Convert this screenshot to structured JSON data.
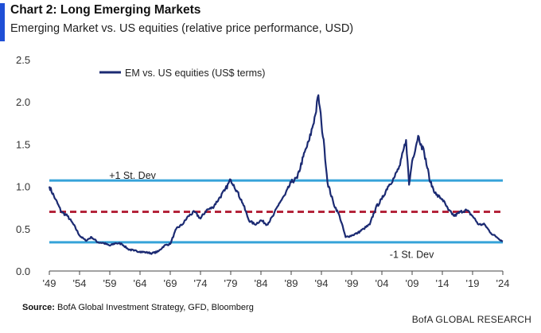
{
  "header": {
    "title": "Chart 2: Long Emerging Markets",
    "subtitle": "Emerging Market vs. US equities (relative price performance, USD)"
  },
  "footer": {
    "source_label": "Source:",
    "source_text": "BofA Global Investment Strategy, GFD, Bloomberg",
    "brand": "BofA GLOBAL RESEARCH"
  },
  "colors": {
    "series": "#1b2a72",
    "band": "#36a3d9",
    "mean": "#b4243a",
    "accent": "#1f4fd6"
  },
  "chart_data": {
    "type": "line",
    "title": "Chart 2: Long Emerging Markets",
    "subtitle": "Emerging Market vs. US equities (relative price performance, USD)",
    "xlabel": "",
    "ylabel": "",
    "xlim": [
      1949,
      2024
    ],
    "ylim": [
      0,
      2.5
    ],
    "x_ticks": [
      1949,
      1954,
      1959,
      1964,
      1969,
      1974,
      1979,
      1984,
      1989,
      1994,
      1999,
      2004,
      2009,
      2014,
      2019,
      2024
    ],
    "x_tick_labels": [
      "'49",
      "'54",
      "'59",
      "'64",
      "'69",
      "'74",
      "'79",
      "'84",
      "'89",
      "'94",
      "'99",
      "'04",
      "'09",
      "'14",
      "'19",
      "'24"
    ],
    "y_ticks": [
      0,
      0.5,
      1.0,
      1.5,
      2.0,
      2.5
    ],
    "y_tick_labels": [
      "0.0",
      "0.5",
      "1.0",
      "1.5",
      "2.0",
      "2.5"
    ],
    "legend": {
      "position": "top-left",
      "entries": [
        "EM vs. US equities (US$ terms)"
      ]
    },
    "reference_lines": [
      {
        "name": "+1 St. Dev",
        "value": 1.07,
        "style": "solid"
      },
      {
        "name": "mean",
        "value": 0.7,
        "style": "dashed"
      },
      {
        "name": "-1 St. Dev",
        "value": 0.34,
        "style": "solid"
      }
    ],
    "annotations": [
      {
        "text": "+1 St. Dev",
        "x": 1951,
        "y": 1.13
      },
      {
        "text": "-1 St. Dev",
        "x": 2002,
        "y": 0.23
      }
    ],
    "series": [
      {
        "name": "EM vs. US equities (US$ terms)",
        "x": [
          1949,
          1950,
          1951,
          1952,
          1953,
          1954,
          1955,
          1956,
          1957,
          1958,
          1959,
          1960,
          1961,
          1962,
          1963,
          1964,
          1965,
          1966,
          1967,
          1968,
          1969,
          1970,
          1971,
          1972,
          1973,
          1974,
          1975,
          1976,
          1977,
          1978,
          1979,
          1979.5,
          1980,
          1981,
          1982,
          1983,
          1984,
          1985,
          1986,
          1987,
          1988,
          1989,
          1990,
          1991,
          1992,
          1993,
          1993.5,
          1994,
          1994.5,
          1995,
          1996,
          1997,
          1998,
          1999,
          2000,
          2001,
          2002,
          2003,
          2004,
          2005,
          2006,
          2007,
          2008,
          2008.5,
          2009,
          2010,
          2010.5,
          2011,
          2012,
          2013,
          2014,
          2015,
          2016,
          2017,
          2018,
          2019,
          2020,
          2021,
          2022,
          2023,
          2024
        ],
        "values": [
          1.0,
          0.85,
          0.7,
          0.65,
          0.55,
          0.42,
          0.36,
          0.4,
          0.34,
          0.33,
          0.3,
          0.33,
          0.32,
          0.26,
          0.24,
          0.23,
          0.22,
          0.21,
          0.23,
          0.3,
          0.32,
          0.5,
          0.55,
          0.65,
          0.7,
          0.62,
          0.72,
          0.75,
          0.85,
          0.95,
          1.08,
          1.02,
          0.95,
          0.8,
          0.6,
          0.55,
          0.6,
          0.55,
          0.65,
          0.8,
          0.9,
          1.05,
          1.1,
          1.35,
          1.55,
          1.85,
          2.08,
          1.75,
          1.45,
          1.05,
          0.8,
          0.65,
          0.4,
          0.42,
          0.45,
          0.5,
          0.55,
          0.75,
          0.85,
          1.0,
          1.1,
          1.25,
          1.55,
          1.02,
          1.3,
          1.6,
          1.5,
          1.4,
          1.05,
          0.9,
          0.85,
          0.72,
          0.65,
          0.7,
          0.72,
          0.65,
          0.55,
          0.55,
          0.45,
          0.4,
          0.35
        ]
      }
    ]
  }
}
